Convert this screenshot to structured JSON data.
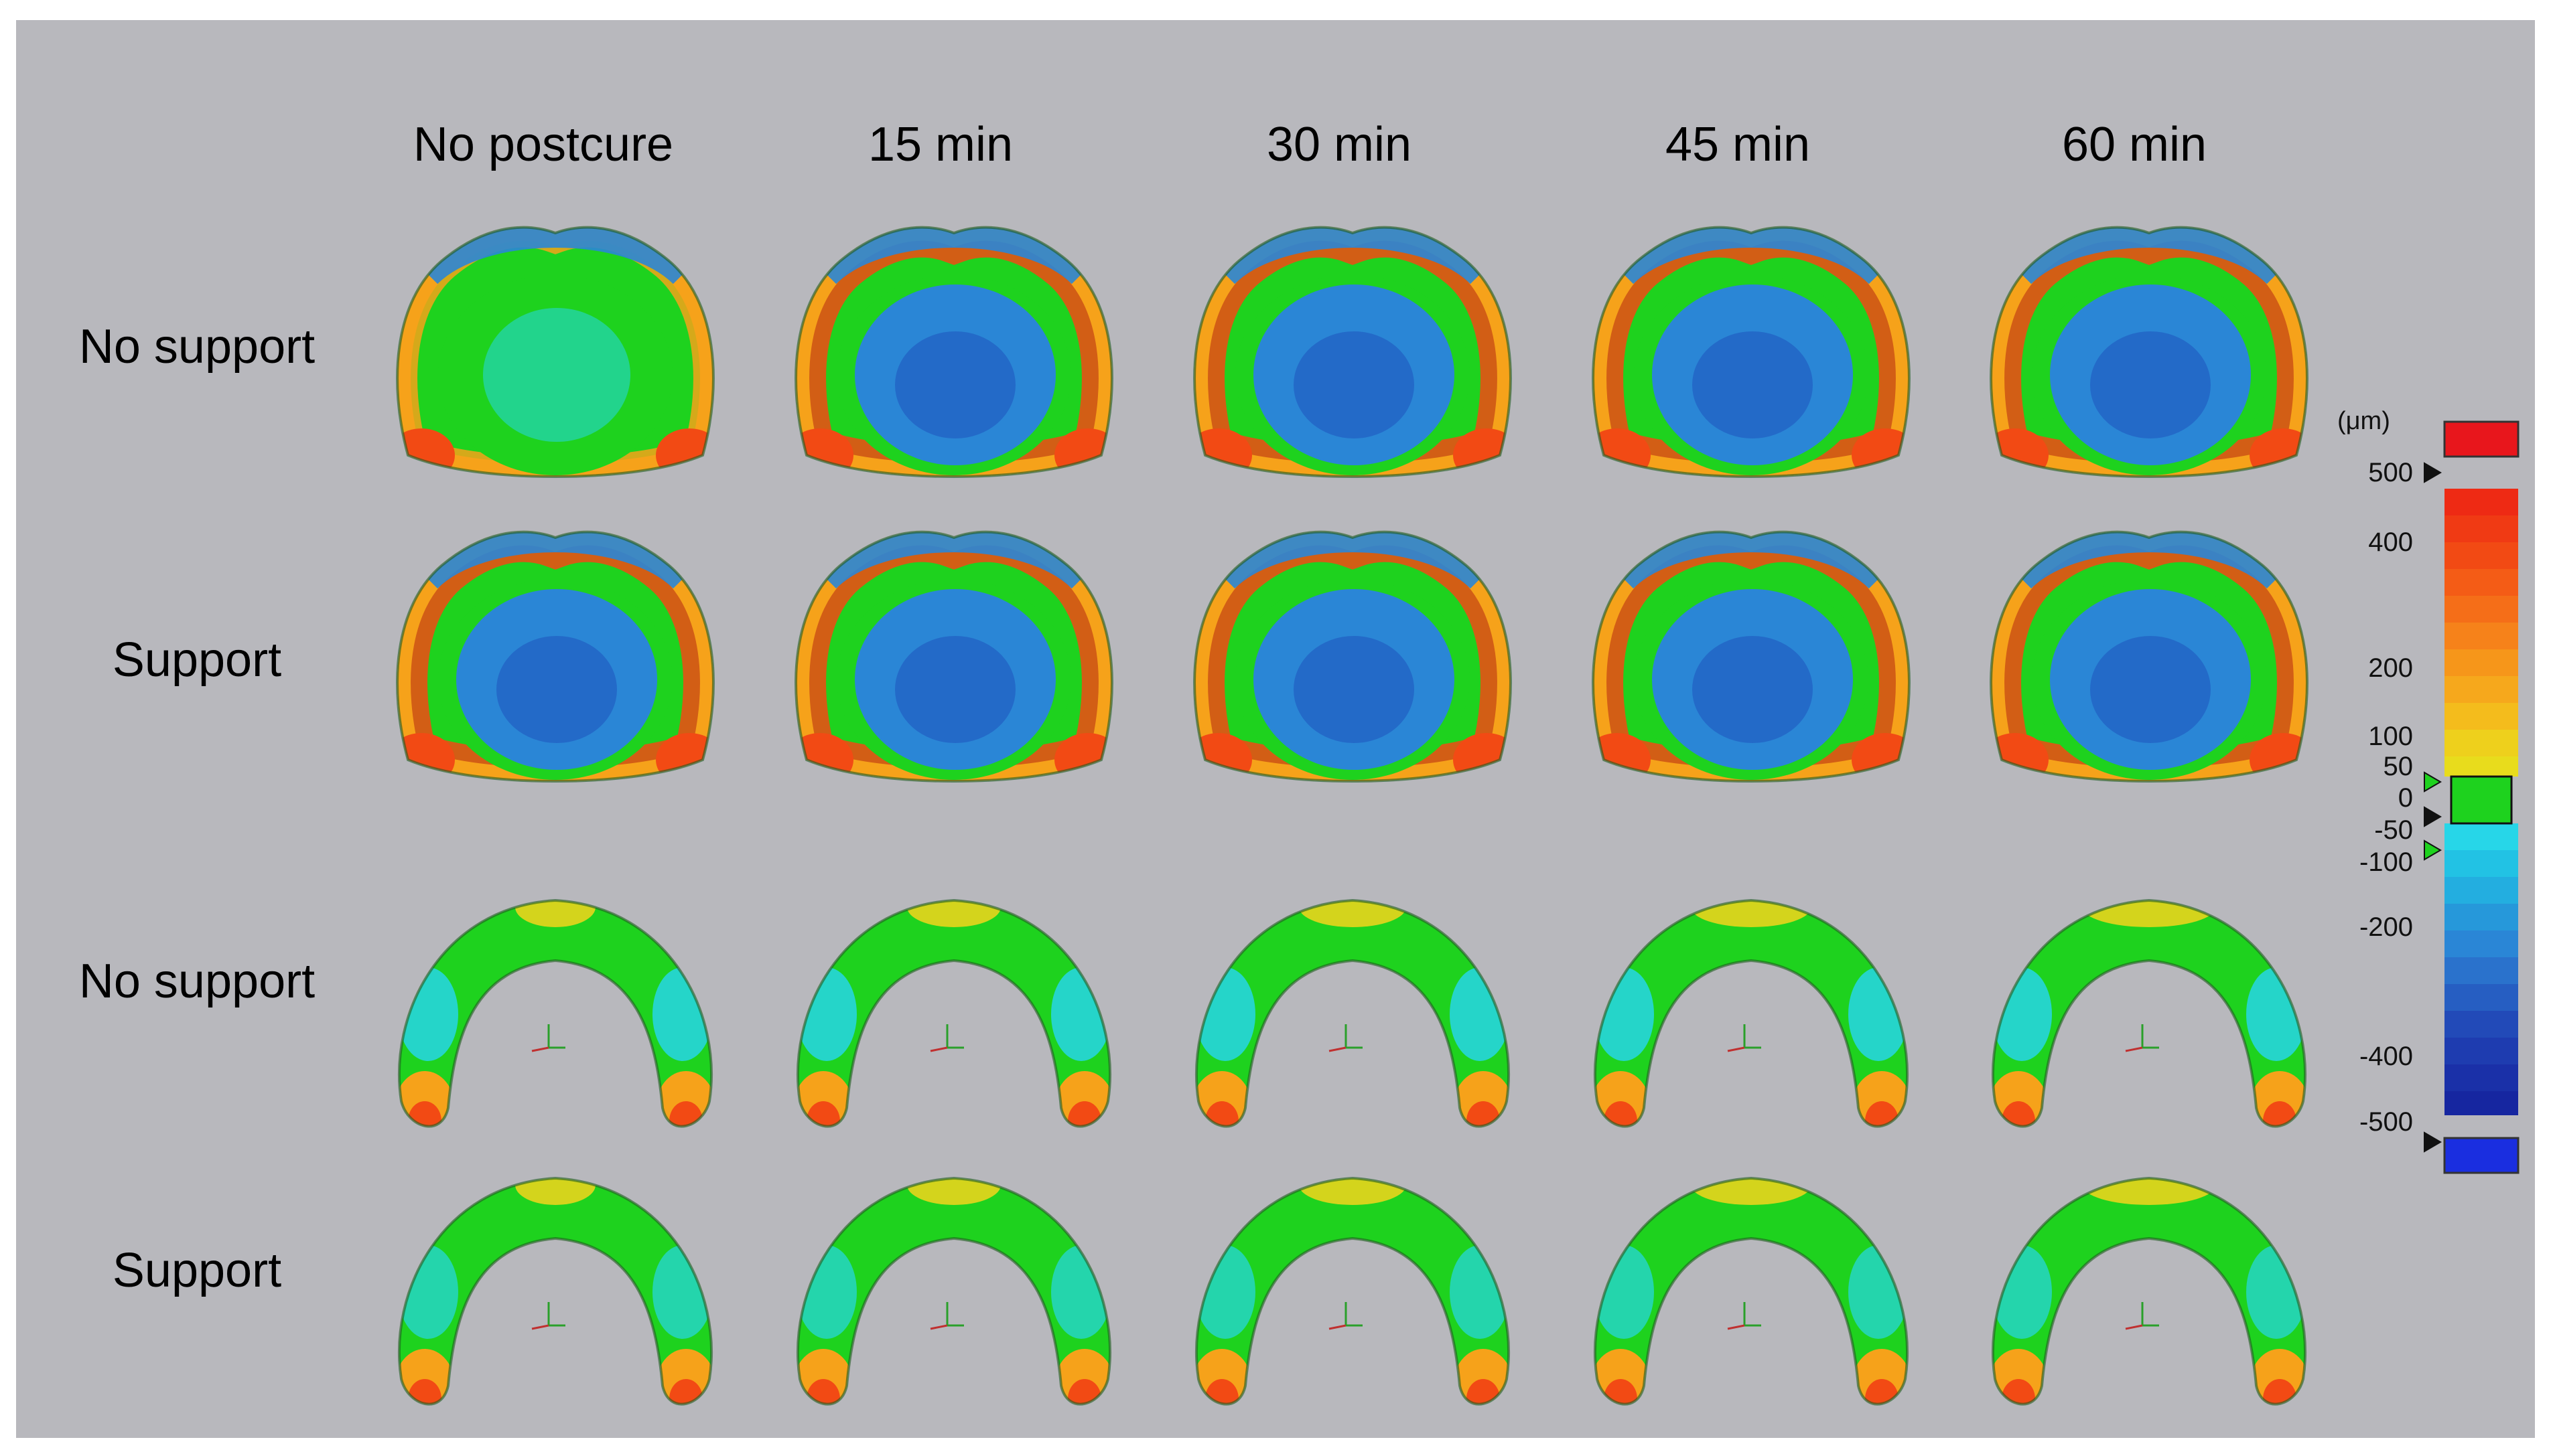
{
  "columns": [
    "No postcure",
    "15 min",
    "30 min",
    "45 min",
    "60 min"
  ],
  "rows": [
    "No support",
    "Support",
    "No support",
    "Support"
  ],
  "scale": {
    "unit": "(μm)",
    "ticks": [
      "500",
      "400",
      "200",
      "100",
      "50",
      "0",
      "-50",
      "-100",
      "-200",
      "-400",
      "-500"
    ],
    "colors": {
      "over_max": "#e8161c",
      "under_min": "#1a2ee0",
      "tolerance": "#1ed21e",
      "high": "#f24a14",
      "mid_high": "#f6a21a",
      "low_high": "#e8d41c",
      "low_cyan": "#27d6e8",
      "mid_blue": "#2a86d6",
      "deep_blue": "#1636b0"
    }
  }
}
